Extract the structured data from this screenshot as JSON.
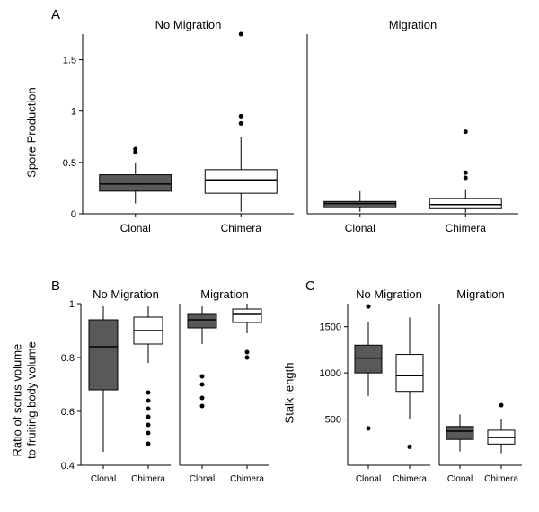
{
  "panelA": {
    "label": "A",
    "ylabel": "Spore Production",
    "ylim": [
      0,
      1.75
    ],
    "yticks": [
      0,
      0.5,
      1.0,
      1.5
    ],
    "facets": [
      "No Migration",
      "Migration"
    ],
    "categories": [
      "Clonal",
      "Chimera"
    ],
    "boxes": [
      {
        "facet": 0,
        "cat": 0,
        "fill": "#595959",
        "q1": 0.22,
        "med": 0.29,
        "q3": 0.38,
        "wlo": 0.1,
        "whi": 0.5,
        "outliers": [
          0.6,
          0.63
        ]
      },
      {
        "facet": 0,
        "cat": 1,
        "fill": "#ffffff",
        "q1": 0.2,
        "med": 0.33,
        "q3": 0.43,
        "wlo": 0.02,
        "whi": 0.75,
        "outliers": [
          0.88,
          0.95,
          1.75
        ]
      },
      {
        "facet": 1,
        "cat": 0,
        "fill": "#595959",
        "q1": 0.06,
        "med": 0.1,
        "q3": 0.12,
        "wlo": 0.02,
        "whi": 0.22,
        "outliers": []
      },
      {
        "facet": 1,
        "cat": 1,
        "fill": "#ffffff",
        "q1": 0.05,
        "med": 0.09,
        "q3": 0.15,
        "wlo": 0.01,
        "whi": 0.24,
        "outliers": [
          0.35,
          0.4,
          0.8
        ]
      }
    ]
  },
  "panelB": {
    "label": "B",
    "ylabel": "Ratio of sorus volume\nto fruiting body volume",
    "ylim": [
      0.4,
      1.0
    ],
    "yticks": [
      0.4,
      0.6,
      0.8,
      1.0
    ],
    "facets": [
      "No Migration",
      "Migration"
    ],
    "categories": [
      "Clonal",
      "Chimera"
    ],
    "boxes": [
      {
        "facet": 0,
        "cat": 0,
        "fill": "#595959",
        "q1": 0.68,
        "med": 0.84,
        "q3": 0.94,
        "wlo": 0.45,
        "whi": 0.99,
        "outliers": []
      },
      {
        "facet": 0,
        "cat": 1,
        "fill": "#ffffff",
        "q1": 0.85,
        "med": 0.9,
        "q3": 0.95,
        "wlo": 0.78,
        "whi": 0.99,
        "outliers": [
          0.48,
          0.52,
          0.55,
          0.58,
          0.61,
          0.64,
          0.67
        ]
      },
      {
        "facet": 1,
        "cat": 0,
        "fill": "#595959",
        "q1": 0.91,
        "med": 0.94,
        "q3": 0.96,
        "wlo": 0.85,
        "whi": 0.99,
        "outliers": [
          0.62,
          0.65,
          0.7,
          0.73
        ]
      },
      {
        "facet": 1,
        "cat": 1,
        "fill": "#ffffff",
        "q1": 0.93,
        "med": 0.96,
        "q3": 0.98,
        "wlo": 0.89,
        "whi": 1.0,
        "outliers": [
          0.8,
          0.82
        ]
      }
    ]
  },
  "panelC": {
    "label": "C",
    "ylabel": "Stalk length",
    "ylim": [
      0,
      1750
    ],
    "yticks": [
      500,
      1000,
      1500
    ],
    "facets": [
      "No Migration",
      "Migration"
    ],
    "categories": [
      "Clonal",
      "Chimera"
    ],
    "boxes": [
      {
        "facet": 0,
        "cat": 0,
        "fill": "#595959",
        "q1": 1000,
        "med": 1160,
        "q3": 1300,
        "wlo": 750,
        "whi": 1550,
        "outliers": [
          400,
          1720
        ]
      },
      {
        "facet": 0,
        "cat": 1,
        "fill": "#ffffff",
        "q1": 800,
        "med": 970,
        "q3": 1200,
        "wlo": 500,
        "whi": 1600,
        "outliers": [
          200
        ]
      },
      {
        "facet": 1,
        "cat": 0,
        "fill": "#595959",
        "q1": 280,
        "med": 370,
        "q3": 420,
        "wlo": 150,
        "whi": 550,
        "outliers": []
      },
      {
        "facet": 1,
        "cat": 1,
        "fill": "#ffffff",
        "q1": 230,
        "med": 300,
        "q3": 380,
        "wlo": 130,
        "whi": 500,
        "outliers": [
          650
        ]
      }
    ]
  },
  "colors": {
    "border": "#000000",
    "tick": "#000000",
    "bg": "#ffffff"
  },
  "fonts": {
    "label": 15,
    "facet": 13,
    "axis": 13,
    "tick": 11
  }
}
